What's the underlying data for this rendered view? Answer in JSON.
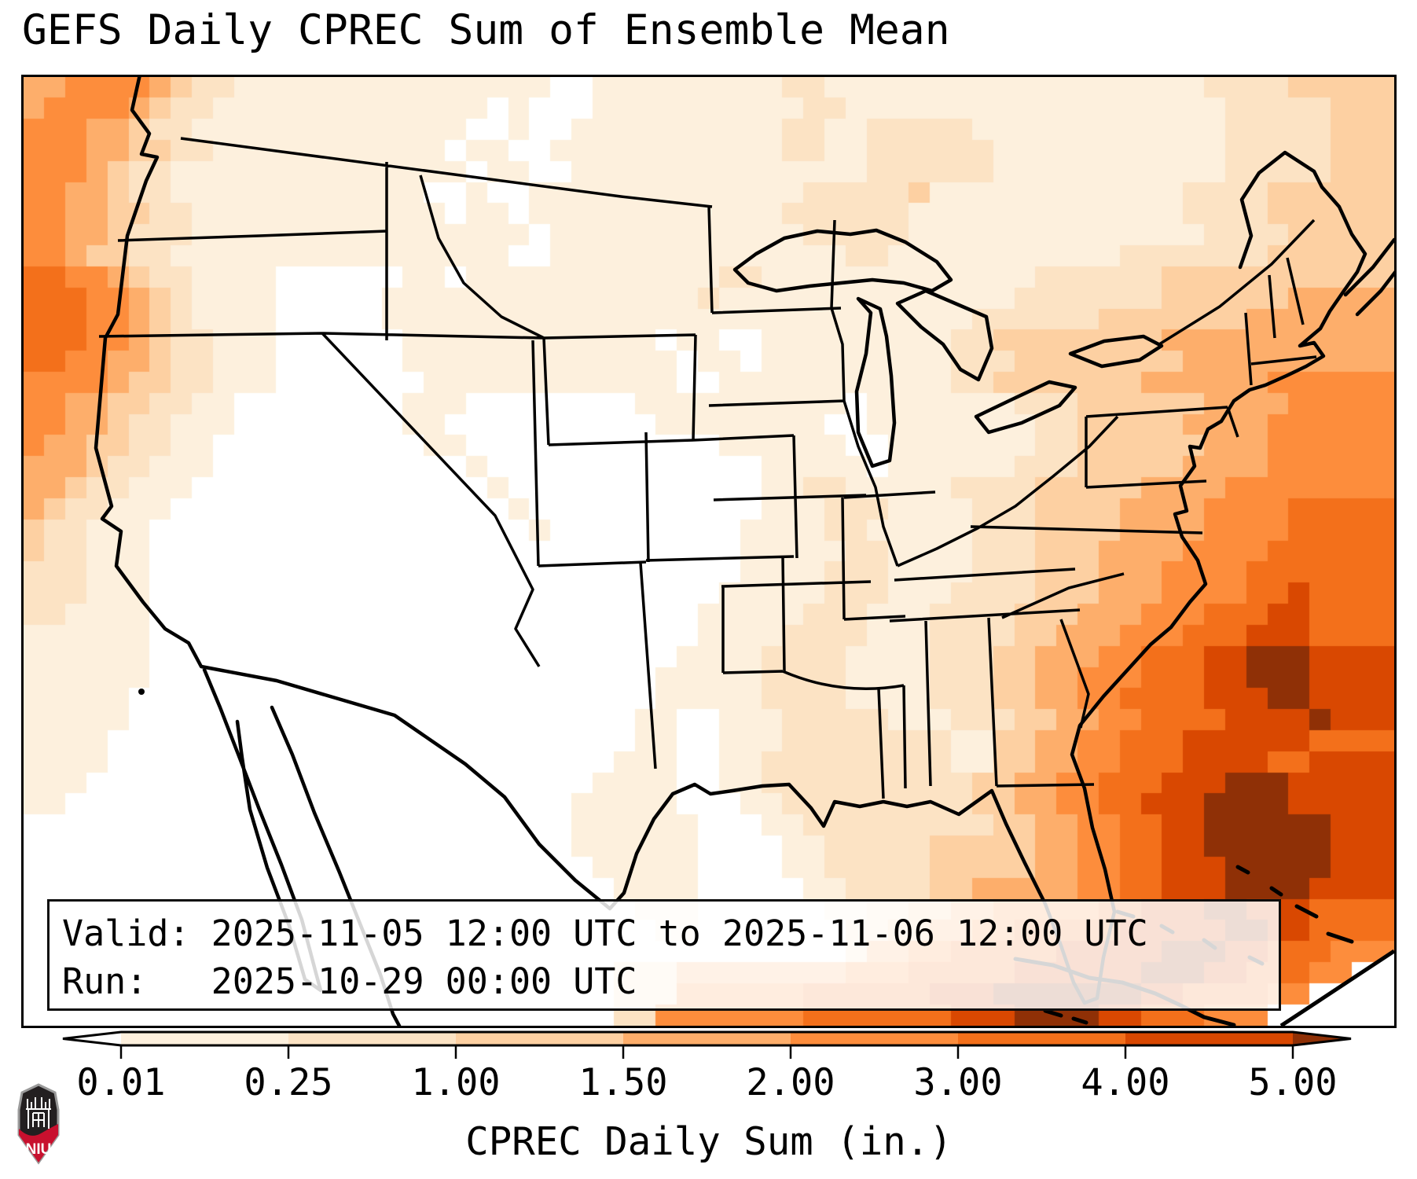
{
  "title": "GEFS Daily CPREC Sum of Ensemble Mean",
  "info_box": {
    "valid_line": "Valid: 2025-11-05 12:00 UTC to 2025-11-06 12:00 UTC",
    "run_line": "Run:   2025-10-29 00:00 UTC"
  },
  "colorbar": {
    "label": "CPREC Daily Sum (in.)",
    "tick_labels": [
      "0.01",
      "0.25",
      "1.00",
      "1.50",
      "2.00",
      "3.00",
      "4.00",
      "5.00"
    ],
    "boundaries": [
      0.01,
      0.25,
      1.0,
      1.5,
      2.0,
      3.0,
      4.0,
      5.0
    ],
    "extend": "both",
    "under_color": "#ffffff",
    "over_color": "#8f3006",
    "segment_colors": [
      "#fdf0dd",
      "#fce3c4",
      "#fdd0a2",
      "#fdae6b",
      "#fd8d3c",
      "#f3701b",
      "#d94801"
    ],
    "outline_color": "#000000"
  },
  "logo": {
    "label": "NIU",
    "shield_red": "#c8102e",
    "shield_black": "#231f20",
    "shield_gray": "#9a9a9a"
  },
  "map": {
    "units": "in.",
    "grid_cols": 65,
    "grid_rows": 45,
    "palette": [
      "#ffffff",
      "#fdf0dd",
      "#fce3c4",
      "#fdd0a2",
      "#fdae6b",
      "#fd8d3c",
      "#f3701b",
      "#d94801",
      "#8f3006"
    ],
    "cells_rle": [
      "2*4,4*5,1*4,1*3,2*2,15*1,2*0,9*1,2*2,18*1,4*2,5*3",
      "1*4,4*5,1*4,1*3,2*2,13*1,1*0,1*1,3*0,10*1,2*2,18*1,5*2,3*3",
      "3*5,2*4,1*3,2*2,13*1,2*0,1*1,2*0,10*1,2*2,2*1,5*2,12*1,5*2,3*3",
      "3*5,2*4,2*3,2*2,11*1,1*0,2*1,2*0,11*1,2*2,2*1,6*2,11*1,5*2,3*3",
      "3*5,1*4,1*3,2*2,14*1,1*0,2*1,2*0,10*1,4*1,6*2,11*1,5*2,3*3",
      "2*5,2*4,1*3,2*2,12*1,2*0,1*1,2*0,13*1,5*2,1*3,12*1,4*2,6*3",
      "2*5,2*4,2*3,2*2,12*1,1*0,2*1,1*0,12*1,6*2,13*1,4*2,6*3",
      "2*5,2*4,1*3,3*2,16*1,1*0,12*1,5*2,14*1,4*2,5*3",
      "2*5,1*4,2*3,2*2,16*1,2*0,14*1,2*2,11*1,7*2,6*3",
      "2*6,2*5,1*4,1*3,2*2,4*1,6*0,2*1,1*0,12*1,2*2,13*1,6*2,9*3",
      "3*6,2*5,1*4,1*3,1*2,4*1,5*0,15*1,1*2,12*1,2*1,7*2,6*3,5*4",
      "3*6,2*5,1*4,1*3,1*2,4*1,5*0,28*1,6*2,7*3,5*4",
      "3*6,2*5,1*4,1*3,2*2,3*1,6*0,12*1,1*0,2*1,2*0,9*1,2*2,8*3,11*4",
      "2*6,2*5,2*4,1*3,2*2,3*1,6*0,13*1,1*0,2*1,1*0,9*1,3*2,8*3,10*4",
      "4*5,1*4,2*3,2*2,3*1,7*0,12*1,2*0,11*1,2*2,7*3,6*4,6*5",
      "2*5,2*4,2*3,2*2,2*1,8*0,3*1,8*0,10*1,1*0,7*1,3*2,6*3,4*4,5*5",
      "2*5,2*4,1*3,2*2,3*1,8*0,2*1,10*0,8*1,2*0,8*1,2*2,5*3,4*4,6*5",
      "1*5,2*4,2*3,2*2,2*1,10*0,2*1,12*0,6*1,2*0,7*1,2*2,6*3,3*4,6*5",
      "3*4,1*3,2*2,3*1,12*0,1*1,13*0,5*1,1*0,6*1,3*2,5*3,4*4,6*5",
      "2*4,1*3,2*2,3*1,14*0,1*1,12*0,2*1,2*2,5*1,4*2,5*3,4*4,8*5",
      "1*4,1*3,2*2,3*1,16*0,1*1,11*0,3*1,3*2,4*1,3*2,4*3,4*4,4*5,5*6",
      "1*3,2*2,3*1,18*0,1*1,9*0,4*1,2*2,5*1,3*2,4*3,4*4,4*5,5*6",
      "1*3,2*2,3*1,28*0,5*1,2*2,4*1,3*2,3*3,4*4,4*5,6*6",
      "3*2,3*1,28*0,4*1,3*2,4*1,3*2,3*3,3*4,4*5,7*6",
      "3*2,3*1,27*0,5*1,3*2,3*1,4*2,3*3,3*4,4*5,2*6,1*7,4*6",
      "2*2,4*1,26*0,5*1,3*2,3*1,4*2,3*3,3*4,3*5,3*6,2*7,4*6",
      "6*1,26*0,4*1,4*2,3*1,4*2,2*3,3*4,3*5,3*6,3*7,4*6",
      "6*1,25*0,4*1,4*2,4*1,3*2,2*3,3*4,2*5,3*6,2*7,3*8,4*7",
      "6*1,24*0,5*1,4*2,4*1,3*2,2*3,2*4,3*5,3*6,2*7,3*8,4*7",
      "5*1,25*0,5*1,4*2,4*1,3*2,2*3,2*4,2*5,4*6,3*7,2*8,4*7",
      "5*1,24*0,2*1,2*0,3*1,5*2,3*1,3*2,2*3,2*4,2*5,4*6,4*7,1*8,3*7",
      "4*1,25*0,2*1,2*0,3*1,5*2,3*2,2*1,2*3,2*4,2*5,3*6,6*7,4*6",
      "4*1,24*0,3*1,2*0,2*1,6*2,3*2,2*1,2*3,2*4,2*5,3*6,4*7,2*6,4*7",
      "3*1,24*0,4*1,2*0,2*1,5*2,3*2,2*2,2*3,2*4,2*5,3*6,3*7,3*8,5*7",
      "2*1,24*0,5*1,3*0,2*1,4*2,3*2,2*2,2*3,2*4,2*5,2*6,3*7,4*8,5*7",
      "26*0,6*1,3*0,2*1,4*2,2*2,3*2,2*3,2*4,2*5,2*6,2*7,6*8,3*7",
      "26*0,6*1,4*0,2*1,3*2,2*2,3*3,2*3,2*4,2*5,2*6,2*7,6*8,3*7",
      "27*0,5*1,4*0,2*1,3*2,2*2,2*3,3*3,2*4,2*5,2*6,3*7,5*8,3*7",
      "28*0,4*1,5*0,2*1,2*2,2*2,2*3,3*4,2*4,2*5,2*6,3*7,4*8,4*7",
      "29*0,3*1,6*0,2*1,2*2,2*3,2*4,3*5,2*5,2*6,3*7,2*8,3*7,4*6",
      "30*0,2*1,7*0,2*2,2*3,2*4,2*5,3*6,2*6,2*7,3*7,2*8,2*7,4*6",
      "31*0,8*0,1*2,2*4,2*5,2*6,3*6,2*7,3*7,3*8,2*7,3*6,3*5",
      "28*0,3*2,8*4,3*5,3*6,2*6,3*7,3*7,3*8,2*7,3*6,2*5,2*0",
      "28*0,3*2,6*5,4*6,2*6,3*7,4*8,3*8,2*7,4*6,2*5,4*0",
      "28*0,2*2,7*5,4*6,3*6,3*7,4*8,2*7,3*6,3*5,6*0"
    ]
  }
}
